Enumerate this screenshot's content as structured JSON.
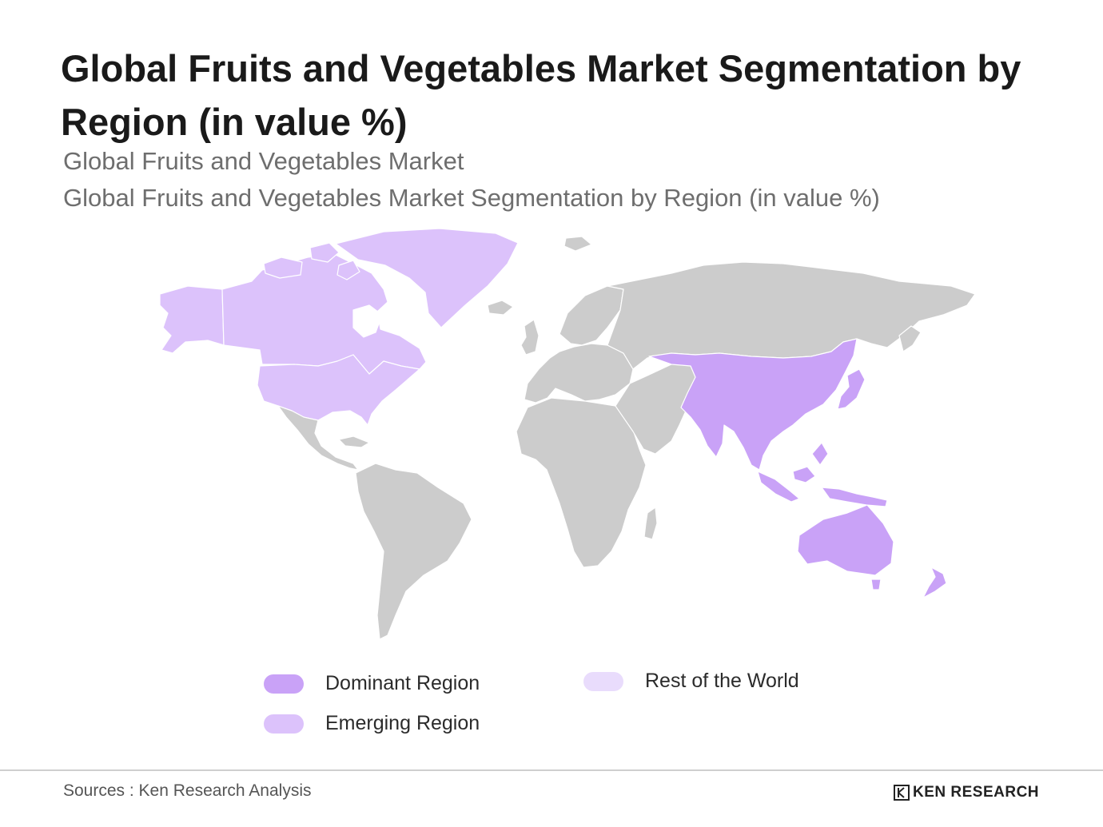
{
  "header": {
    "title": "Global Fruits and Vegetables Market Segmentation by Region (in value %)",
    "subtitle_1": "Global Fruits and Vegetables Market",
    "subtitle_2": "Global Fruits and Vegetables Market Segmentation by Region (in value %)"
  },
  "map": {
    "regions": [
      {
        "name": "North America",
        "category": "Emerging Region"
      },
      {
        "name": "Greenland",
        "category": "Emerging Region"
      },
      {
        "name": "Asia Pacific",
        "category": "Dominant Region"
      },
      {
        "name": "Australia",
        "category": "Dominant Region"
      },
      {
        "name": "New Zealand",
        "category": "Dominant Region"
      }
    ],
    "colors": {
      "dominant": "#c9a2f7",
      "emerging": "#dcc2fb",
      "rest": "#e9dcfc",
      "unhighlighted": "#cccccc"
    }
  },
  "legend": {
    "dominant": "Dominant Region",
    "emerging": "Emerging Region",
    "rest": "Rest of the World"
  },
  "footer": {
    "source": "Sources : Ken Research Analysis",
    "logo_text": "KEN RESEARCH"
  }
}
